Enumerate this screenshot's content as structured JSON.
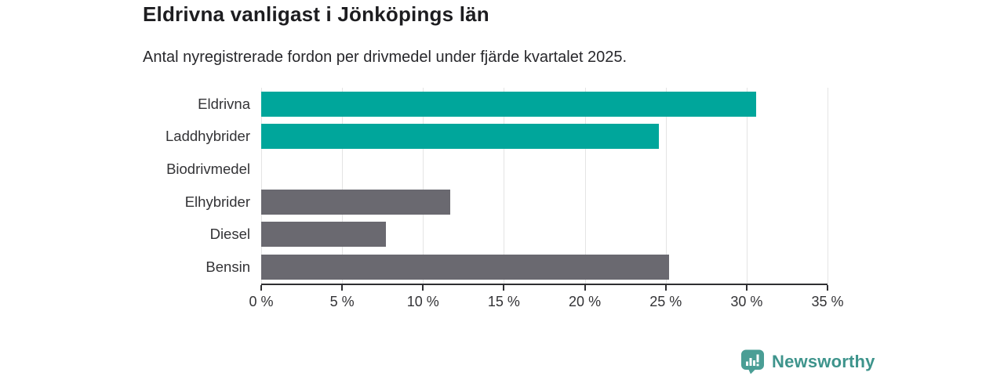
{
  "header": {
    "title": "Eldrivna vanligast i Jönköpings län",
    "subtitle": "Antal nyregistrerade fordon per drivmedel under fjärde kvartalet 2025."
  },
  "chart_data": {
    "type": "bar",
    "orientation": "horizontal",
    "title": "Eldrivna vanligast i Jönköpings län",
    "subtitle": "Antal nyregistrerade fordon per drivmedel under fjärde kvartalet 2025.",
    "categories": [
      "Eldrivna",
      "Laddhybrider",
      "Biodrivmedel",
      "Elhybrider",
      "Diesel",
      "Bensin"
    ],
    "values": [
      30.6,
      24.6,
      0,
      11.7,
      7.7,
      25.2
    ],
    "unit": "%",
    "bar_colors": [
      "#00a69b",
      "#00a69b",
      "#6a6970",
      "#6a6970",
      "#6a6970",
      "#6a6970"
    ],
    "xlabel": "",
    "ylabel": "",
    "xlim": [
      0,
      35
    ],
    "x_ticks": [
      0,
      5,
      10,
      15,
      20,
      25,
      30,
      35
    ],
    "x_tick_labels": [
      "0 %",
      "5 %",
      "10 %",
      "15 %",
      "20 %",
      "25 %",
      "30 %",
      "35 %"
    ],
    "grid": "vertical-gridlines-on",
    "legend": "none"
  },
  "footer": {
    "brand": "Newsworthy"
  },
  "colors": {
    "accent_teal": "#00a69b",
    "neutral_gray": "#6a6970",
    "logo_teal": "#4a9e95",
    "logo_text_teal": "#3e948c",
    "axis": "#2e2e31",
    "gridline": "#e4e4e4",
    "title_text": "#1d1d20",
    "body_text": "#333336"
  }
}
